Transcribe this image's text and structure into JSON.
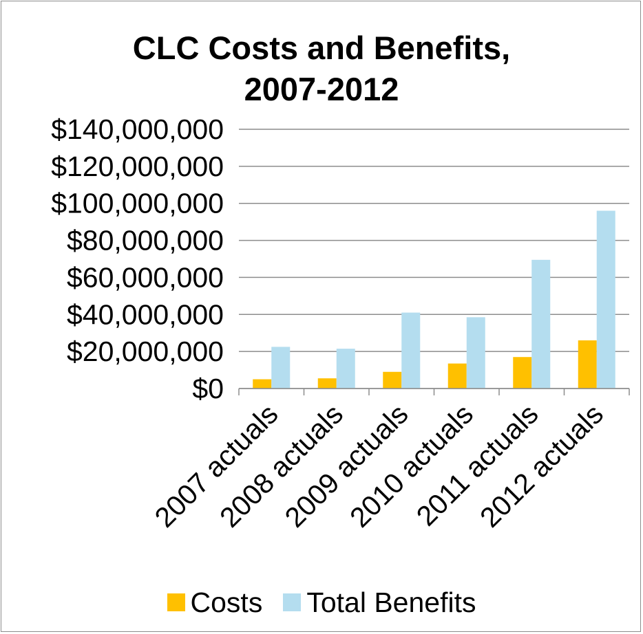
{
  "chart_data": {
    "type": "bar",
    "title": [
      "CLC Costs and Benefits,",
      "2007-2012"
    ],
    "categories": [
      "2007 actuals",
      "2008 actuals",
      "2009 actuals",
      "2010 actuals",
      "2011 actuals",
      "2012 actuals"
    ],
    "series": [
      {
        "name": "Costs",
        "color": "#FFC000",
        "values": [
          5000000,
          5500000,
          9000000,
          13500000,
          17000000,
          26000000
        ]
      },
      {
        "name": "Total Benefits",
        "color": "#B4DDEF",
        "values": [
          22500000,
          21500000,
          41000000,
          38500000,
          69500000,
          96000000
        ]
      }
    ],
    "ylim": [
      0,
      140000000
    ],
    "yticks": [
      0,
      20000000,
      40000000,
      60000000,
      80000000,
      100000000,
      120000000,
      140000000
    ],
    "ytick_labels": [
      "$0",
      "$20,000,000",
      "$40,000,000",
      "$60,000,000",
      "$80,000,000",
      "$100,000,000",
      "$120,000,000",
      "$140,000,000"
    ],
    "grid": true,
    "legend_position": "bottom",
    "gridline_color": "#8c8c8c"
  }
}
